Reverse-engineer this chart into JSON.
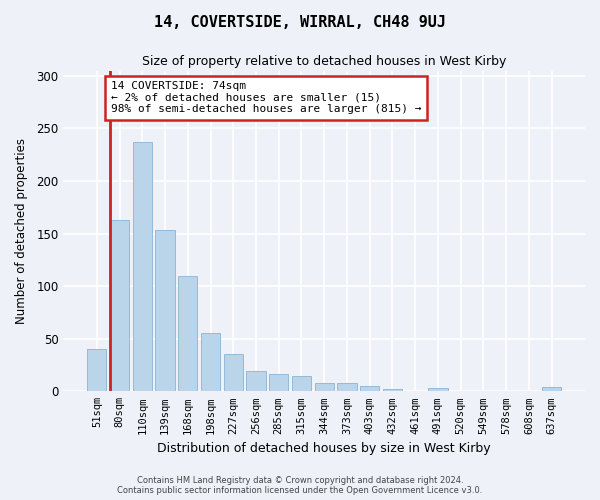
{
  "title": "14, COVERTSIDE, WIRRAL, CH48 9UJ",
  "subtitle": "Size of property relative to detached houses in West Kirby",
  "xlabel": "Distribution of detached houses by size in West Kirby",
  "ylabel": "Number of detached properties",
  "categories": [
    "51sqm",
    "80sqm",
    "110sqm",
    "139sqm",
    "168sqm",
    "198sqm",
    "227sqm",
    "256sqm",
    "285sqm",
    "315sqm",
    "344sqm",
    "373sqm",
    "403sqm",
    "432sqm",
    "461sqm",
    "491sqm",
    "520sqm",
    "549sqm",
    "578sqm",
    "608sqm",
    "637sqm"
  ],
  "values": [
    40,
    163,
    237,
    153,
    110,
    55,
    35,
    19,
    16,
    15,
    8,
    8,
    5,
    2,
    0,
    3,
    0,
    0,
    0,
    0,
    4
  ],
  "bar_color": "#bad4ea",
  "bar_edge_color": "#8ab4d4",
  "annotation_text": "14 COVERTSIDE: 74sqm\n← 2% of detached houses are smaller (15)\n98% of semi-detached houses are larger (815) →",
  "annotation_box_color": "#ffffff",
  "annotation_box_edge_color": "#cc2222",
  "redline_x": 0.5,
  "ylim": [
    0,
    305
  ],
  "yticks": [
    0,
    50,
    100,
    150,
    200,
    250,
    300
  ],
  "background_color": "#eef2f8",
  "grid_color": "#ffffff",
  "footer_line1": "Contains HM Land Registry data © Crown copyright and database right 2024.",
  "footer_line2": "Contains public sector information licensed under the Open Government Licence v3.0."
}
